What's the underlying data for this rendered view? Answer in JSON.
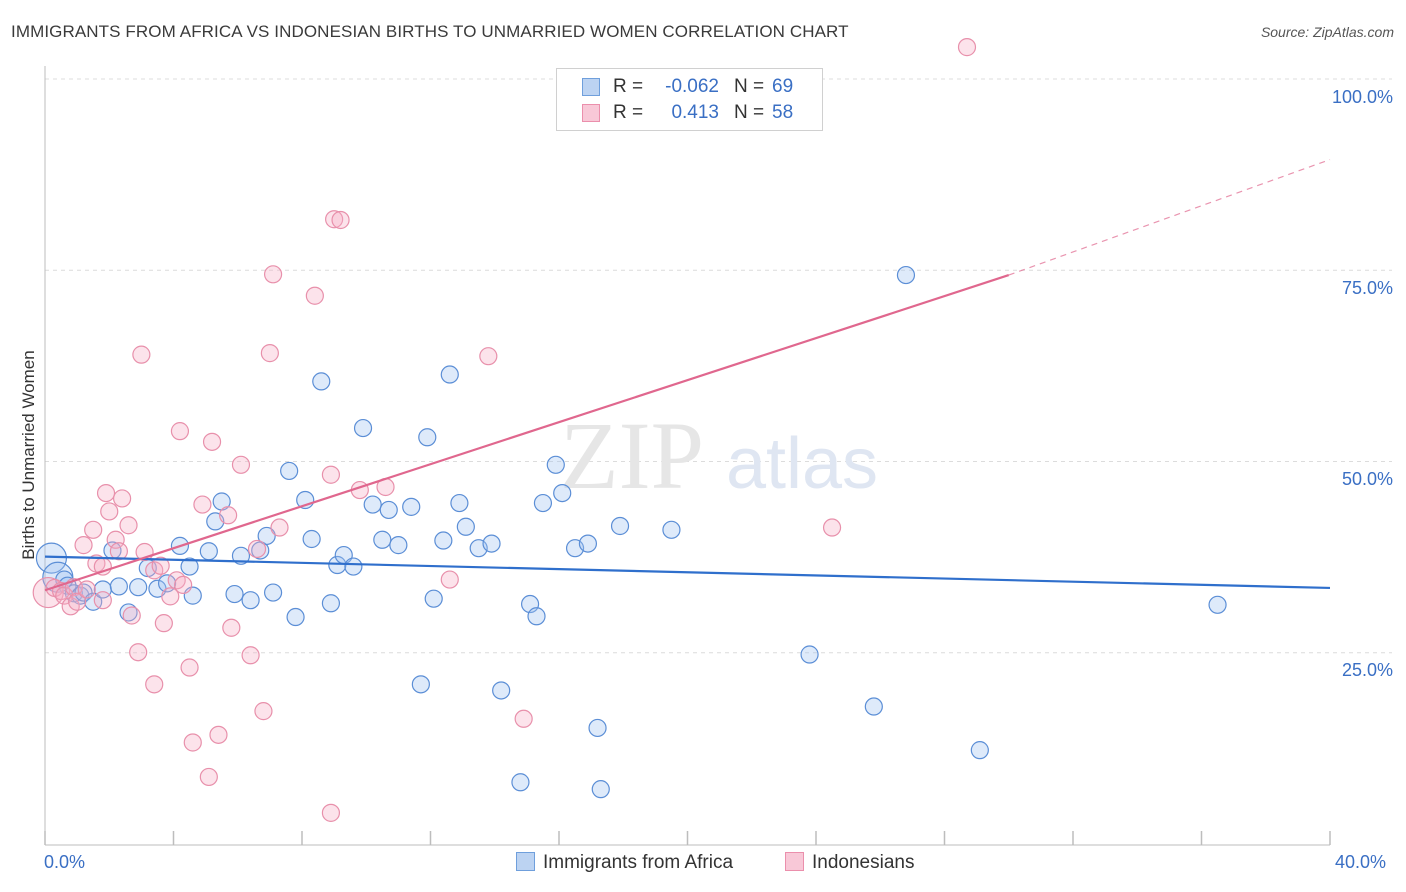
{
  "title": "IMMIGRANTS FROM AFRICA VS INDONESIAN BIRTHS TO UNMARRIED WOMEN CORRELATION CHART",
  "source": "Source: ZipAtlas.com",
  "watermark": {
    "zip": "ZIP",
    "atlas": "atlas"
  },
  "legend": {
    "rows": [
      {
        "r_label": "R =",
        "r_value": "-0.062",
        "n_label": "N =",
        "n_value": "69",
        "color": "#6f9fdc",
        "fill": "#bcd3f2"
      },
      {
        "r_label": "R =",
        "r_value": "0.413",
        "n_label": "N =",
        "n_value": "58",
        "color": "#eb8fac",
        "fill": "#f8c8d7"
      }
    ],
    "bottom": [
      {
        "label": "Immigrants from Africa"
      },
      {
        "label": "Indonesians"
      }
    ]
  },
  "chart_data": {
    "type": "scatter",
    "title": "IMMIGRANTS FROM AFRICA VS INDONESIAN BIRTHS TO UNMARRIED WOMEN CORRELATION CHART",
    "xlabel": "",
    "ylabel": "Births to Unmarried Women",
    "xlim": [
      0,
      40
    ],
    "ylim": [
      0,
      100
    ],
    "x_tick_labels": [
      "0.0%",
      "40.0%"
    ],
    "y_tick_labels": [
      {
        "value": 25,
        "label": "25.0%"
      },
      {
        "value": 50,
        "label": "50.0%"
      },
      {
        "value": 75,
        "label": "75.0%"
      },
      {
        "value": 100,
        "label": "100.0%"
      }
    ],
    "series": [
      {
        "name": "Immigrants from Africa",
        "color": "#5b8ed6",
        "fill": "rgba(160,195,240,0.35)",
        "trend": {
          "x0": 0,
          "y0": 37.7,
          "x1": 40,
          "y1": 33.6,
          "color": "#2f6fcc"
        },
        "points": [
          [
            0.2,
            37.5,
            "big"
          ],
          [
            0.4,
            35.0,
            "big"
          ],
          [
            0.6,
            34.7
          ],
          [
            0.7,
            33.9
          ],
          [
            0.9,
            32.9
          ],
          [
            1.1,
            32.6
          ],
          [
            1.2,
            33.0
          ],
          [
            1.5,
            31.8
          ],
          [
            1.8,
            33.4
          ],
          [
            2.1,
            38.5
          ],
          [
            2.3,
            33.8
          ],
          [
            2.6,
            30.4
          ],
          [
            2.9,
            33.7
          ],
          [
            3.2,
            36.2
          ],
          [
            3.5,
            33.5
          ],
          [
            3.8,
            34.2
          ],
          [
            4.2,
            39.1
          ],
          [
            4.5,
            36.4
          ],
          [
            4.6,
            32.6
          ],
          [
            5.1,
            38.4
          ],
          [
            5.3,
            42.3
          ],
          [
            5.5,
            44.9
          ],
          [
            5.9,
            32.8
          ],
          [
            6.1,
            37.8
          ],
          [
            6.4,
            32.0
          ],
          [
            6.7,
            38.5
          ],
          [
            6.9,
            40.4
          ],
          [
            7.1,
            33.0
          ],
          [
            7.6,
            48.9
          ],
          [
            7.8,
            29.8
          ],
          [
            8.1,
            45.1
          ],
          [
            8.3,
            40.0
          ],
          [
            8.6,
            60.6
          ],
          [
            8.9,
            31.6
          ],
          [
            9.1,
            36.6
          ],
          [
            9.3,
            37.9
          ],
          [
            9.6,
            36.4
          ],
          [
            9.9,
            54.5
          ],
          [
            10.2,
            44.5
          ],
          [
            10.5,
            39.9
          ],
          [
            10.7,
            43.8
          ],
          [
            11.0,
            39.2
          ],
          [
            11.4,
            44.2
          ],
          [
            11.7,
            21.0
          ],
          [
            11.9,
            53.3
          ],
          [
            12.1,
            32.2
          ],
          [
            12.4,
            39.8
          ],
          [
            12.6,
            61.5
          ],
          [
            12.9,
            44.7
          ],
          [
            13.1,
            41.6
          ],
          [
            13.5,
            38.8
          ],
          [
            13.9,
            39.4
          ],
          [
            14.2,
            20.2
          ],
          [
            14.8,
            8.2
          ],
          [
            15.1,
            31.5
          ],
          [
            15.3,
            29.9
          ],
          [
            15.5,
            44.7
          ],
          [
            15.9,
            49.7
          ],
          [
            16.1,
            46.0
          ],
          [
            16.5,
            38.8
          ],
          [
            16.9,
            39.4
          ],
          [
            17.2,
            15.3
          ],
          [
            17.3,
            7.3
          ],
          [
            17.9,
            41.7
          ],
          [
            19.5,
            41.2
          ],
          [
            23.8,
            24.9
          ],
          [
            25.8,
            18.1
          ],
          [
            26.8,
            74.5
          ],
          [
            29.1,
            12.4
          ],
          [
            36.5,
            31.4
          ]
        ]
      },
      {
        "name": "Indonesians",
        "color": "#e890ab",
        "fill": "rgba(245,175,198,0.35)",
        "trend": {
          "x0": 0,
          "y0": 33.3,
          "x1": 30,
          "y1": 74.5,
          "x2": 40,
          "y2": 89.6,
          "color": "#e0678e"
        },
        "points": [
          [
            0.1,
            33.0,
            "big"
          ],
          [
            0.3,
            33.6
          ],
          [
            0.5,
            33.2
          ],
          [
            0.6,
            32.6
          ],
          [
            0.8,
            31.2
          ],
          [
            0.9,
            33.7
          ],
          [
            1.0,
            31.8
          ],
          [
            1.2,
            39.2
          ],
          [
            1.3,
            33.4
          ],
          [
            1.5,
            41.2
          ],
          [
            1.6,
            36.8
          ],
          [
            1.8,
            32.0
          ],
          [
            1.8,
            36.4
          ],
          [
            1.9,
            46.0
          ],
          [
            2.0,
            43.6
          ],
          [
            2.2,
            39.9
          ],
          [
            2.3,
            38.4
          ],
          [
            2.4,
            45.3
          ],
          [
            2.6,
            41.8
          ],
          [
            2.7,
            30.0
          ],
          [
            2.9,
            25.2
          ],
          [
            3.0,
            64.1
          ],
          [
            3.1,
            38.3
          ],
          [
            3.4,
            35.9
          ],
          [
            3.4,
            21.0
          ],
          [
            3.6,
            36.5
          ],
          [
            3.7,
            29.0
          ],
          [
            3.9,
            32.5
          ],
          [
            4.1,
            34.6
          ],
          [
            4.2,
            54.1
          ],
          [
            4.3,
            34.0
          ],
          [
            4.5,
            23.2
          ],
          [
            4.6,
            13.4
          ],
          [
            4.9,
            44.5
          ],
          [
            5.1,
            8.9
          ],
          [
            5.2,
            52.7
          ],
          [
            5.4,
            14.4
          ],
          [
            5.7,
            43.1
          ],
          [
            5.8,
            28.4
          ],
          [
            6.1,
            49.7
          ],
          [
            6.4,
            24.8
          ],
          [
            6.6,
            38.7
          ],
          [
            6.8,
            17.5
          ],
          [
            7.0,
            64.3
          ],
          [
            7.1,
            74.6
          ],
          [
            7.3,
            41.5
          ],
          [
            8.4,
            71.8
          ],
          [
            8.9,
            48.4
          ],
          [
            8.9,
            4.2
          ],
          [
            9.0,
            81.8
          ],
          [
            9.2,
            81.7
          ],
          [
            9.8,
            46.4
          ],
          [
            10.6,
            46.8
          ],
          [
            12.6,
            34.7
          ],
          [
            13.8,
            63.9
          ],
          [
            14.9,
            16.5
          ],
          [
            24.5,
            41.5
          ],
          [
            28.7,
            104.3
          ]
        ]
      }
    ]
  }
}
